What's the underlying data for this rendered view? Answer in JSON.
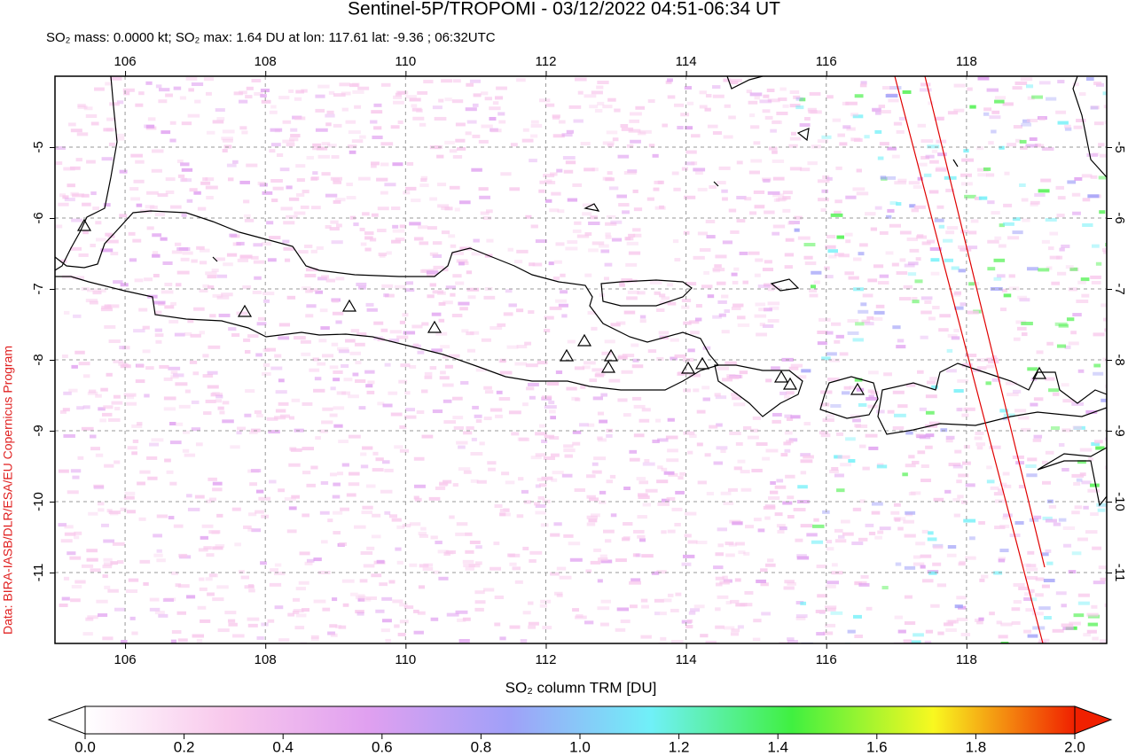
{
  "title": "Sentinel-5P/TROPOMI - 03/12/2022 04:51-06:34 UT",
  "subtitle": "SO₂ mass: 0.0000 kt; SO₂ max: 1.64 DU at lon: 117.61 lat: -9.36 ; 06:32UTC",
  "map": {
    "xlim": [
      105,
      120
    ],
    "ylim": [
      -12,
      -4
    ],
    "xticks": [
      106,
      108,
      110,
      112,
      114,
      116,
      118
    ],
    "yticks": [
      -5,
      -6,
      -7,
      -8,
      -9,
      -10,
      -11
    ],
    "credit": "Data: BIRA-IASB/DLR/ESA/EU Copernicus Program"
  },
  "colorbar": {
    "label": "SO₂ column TRM [DU]",
    "lim": [
      0,
      2
    ],
    "colors": [
      "#ffffff",
      "#f8c8ec",
      "#e0a0f0",
      "#a0a0f8",
      "#70f0f8",
      "#40f040",
      "#f8f820",
      "#f02000"
    ],
    "ticks": [
      {
        "value": 0,
        "label": "0.0"
      },
      {
        "value": 0.2,
        "label": "0.2"
      },
      {
        "value": 0.4,
        "label": "0.4"
      },
      {
        "value": 0.6,
        "label": "0.6"
      },
      {
        "value": 0.8,
        "label": "0.8"
      },
      {
        "value": 1.0,
        "label": "1.0"
      },
      {
        "value": 1.2,
        "label": "1.2"
      },
      {
        "value": 1.4,
        "label": "1.4"
      },
      {
        "value": 1.6,
        "label": "1.6"
      },
      {
        "value": 1.8,
        "label": "1.8"
      },
      {
        "value": 2.0,
        "label": "2.0"
      }
    ]
  }
}
